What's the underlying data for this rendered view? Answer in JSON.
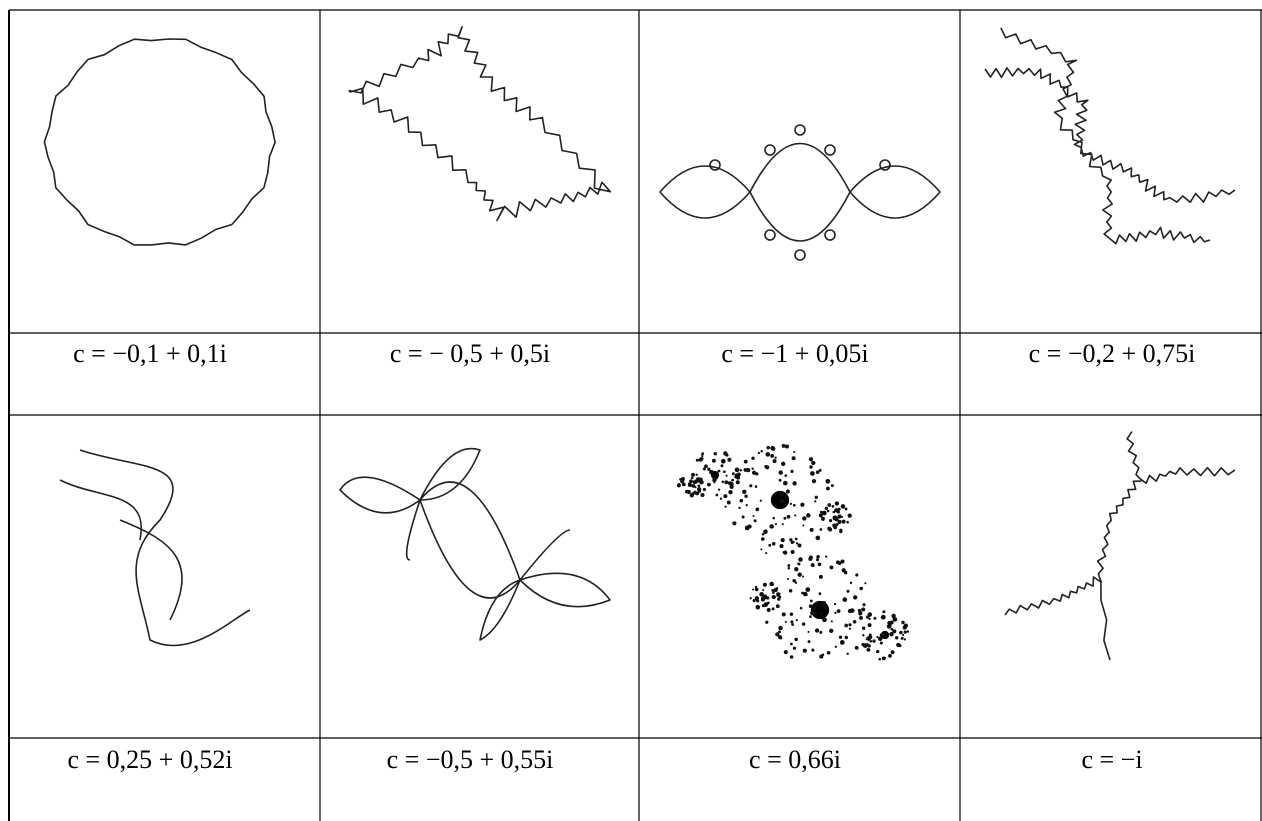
{
  "table": {
    "rows": [
      [
        "c = −0,1 + 0,1i",
        "c = − 0,5 + 0,5i",
        "c = −1 + 0,05i",
        "c = −0,2 + 0,75i"
      ],
      [
        "c = 0,25 + 0,52i",
        "c = −0,5 + 0,55i",
        "c = 0,66i",
        "c = −i"
      ]
    ]
  }
}
